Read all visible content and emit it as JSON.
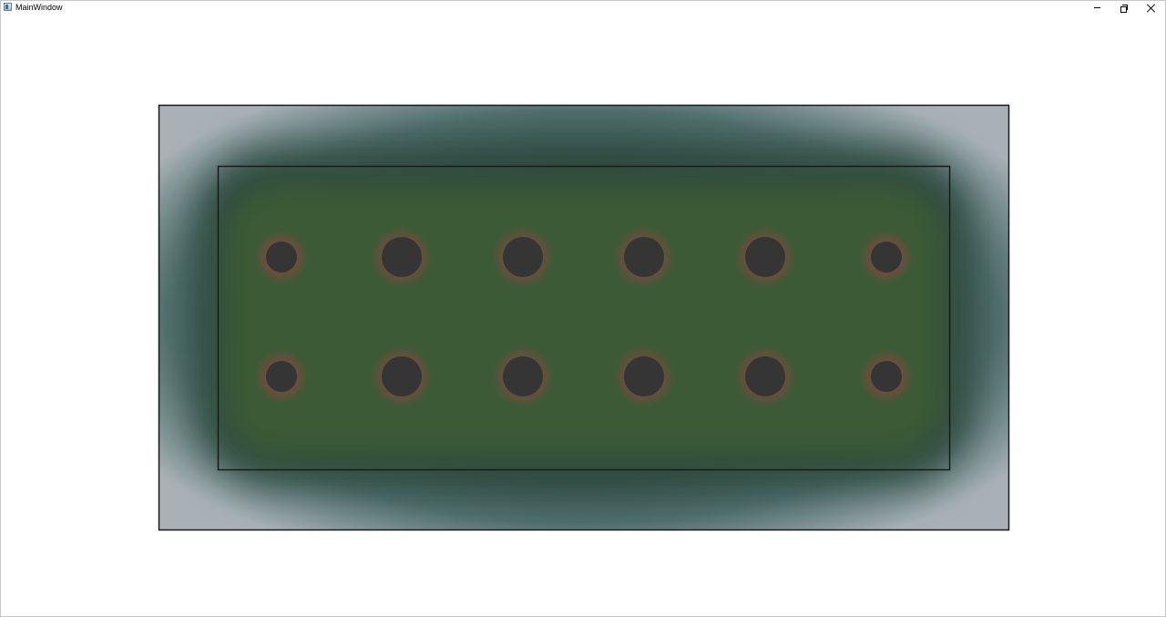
{
  "window": {
    "title": "MainWindow",
    "icon": "app-window-icon",
    "controls": {
      "minimize_icon": "minimize-icon",
      "restore_icon": "restore-icon",
      "close_icon": "close-icon"
    }
  },
  "heatmap": {
    "colors": {
      "outer_edge": "#a7b1b6",
      "outer_mid": "#4f6e6c",
      "dark_band": "#2f4a40",
      "inner_field": "#3b5a34",
      "ring": "#7a4a3f",
      "hole": "#353535",
      "outline": "#1a1a1a"
    },
    "hole_grid": {
      "rows": 2,
      "cols": 6
    }
  }
}
